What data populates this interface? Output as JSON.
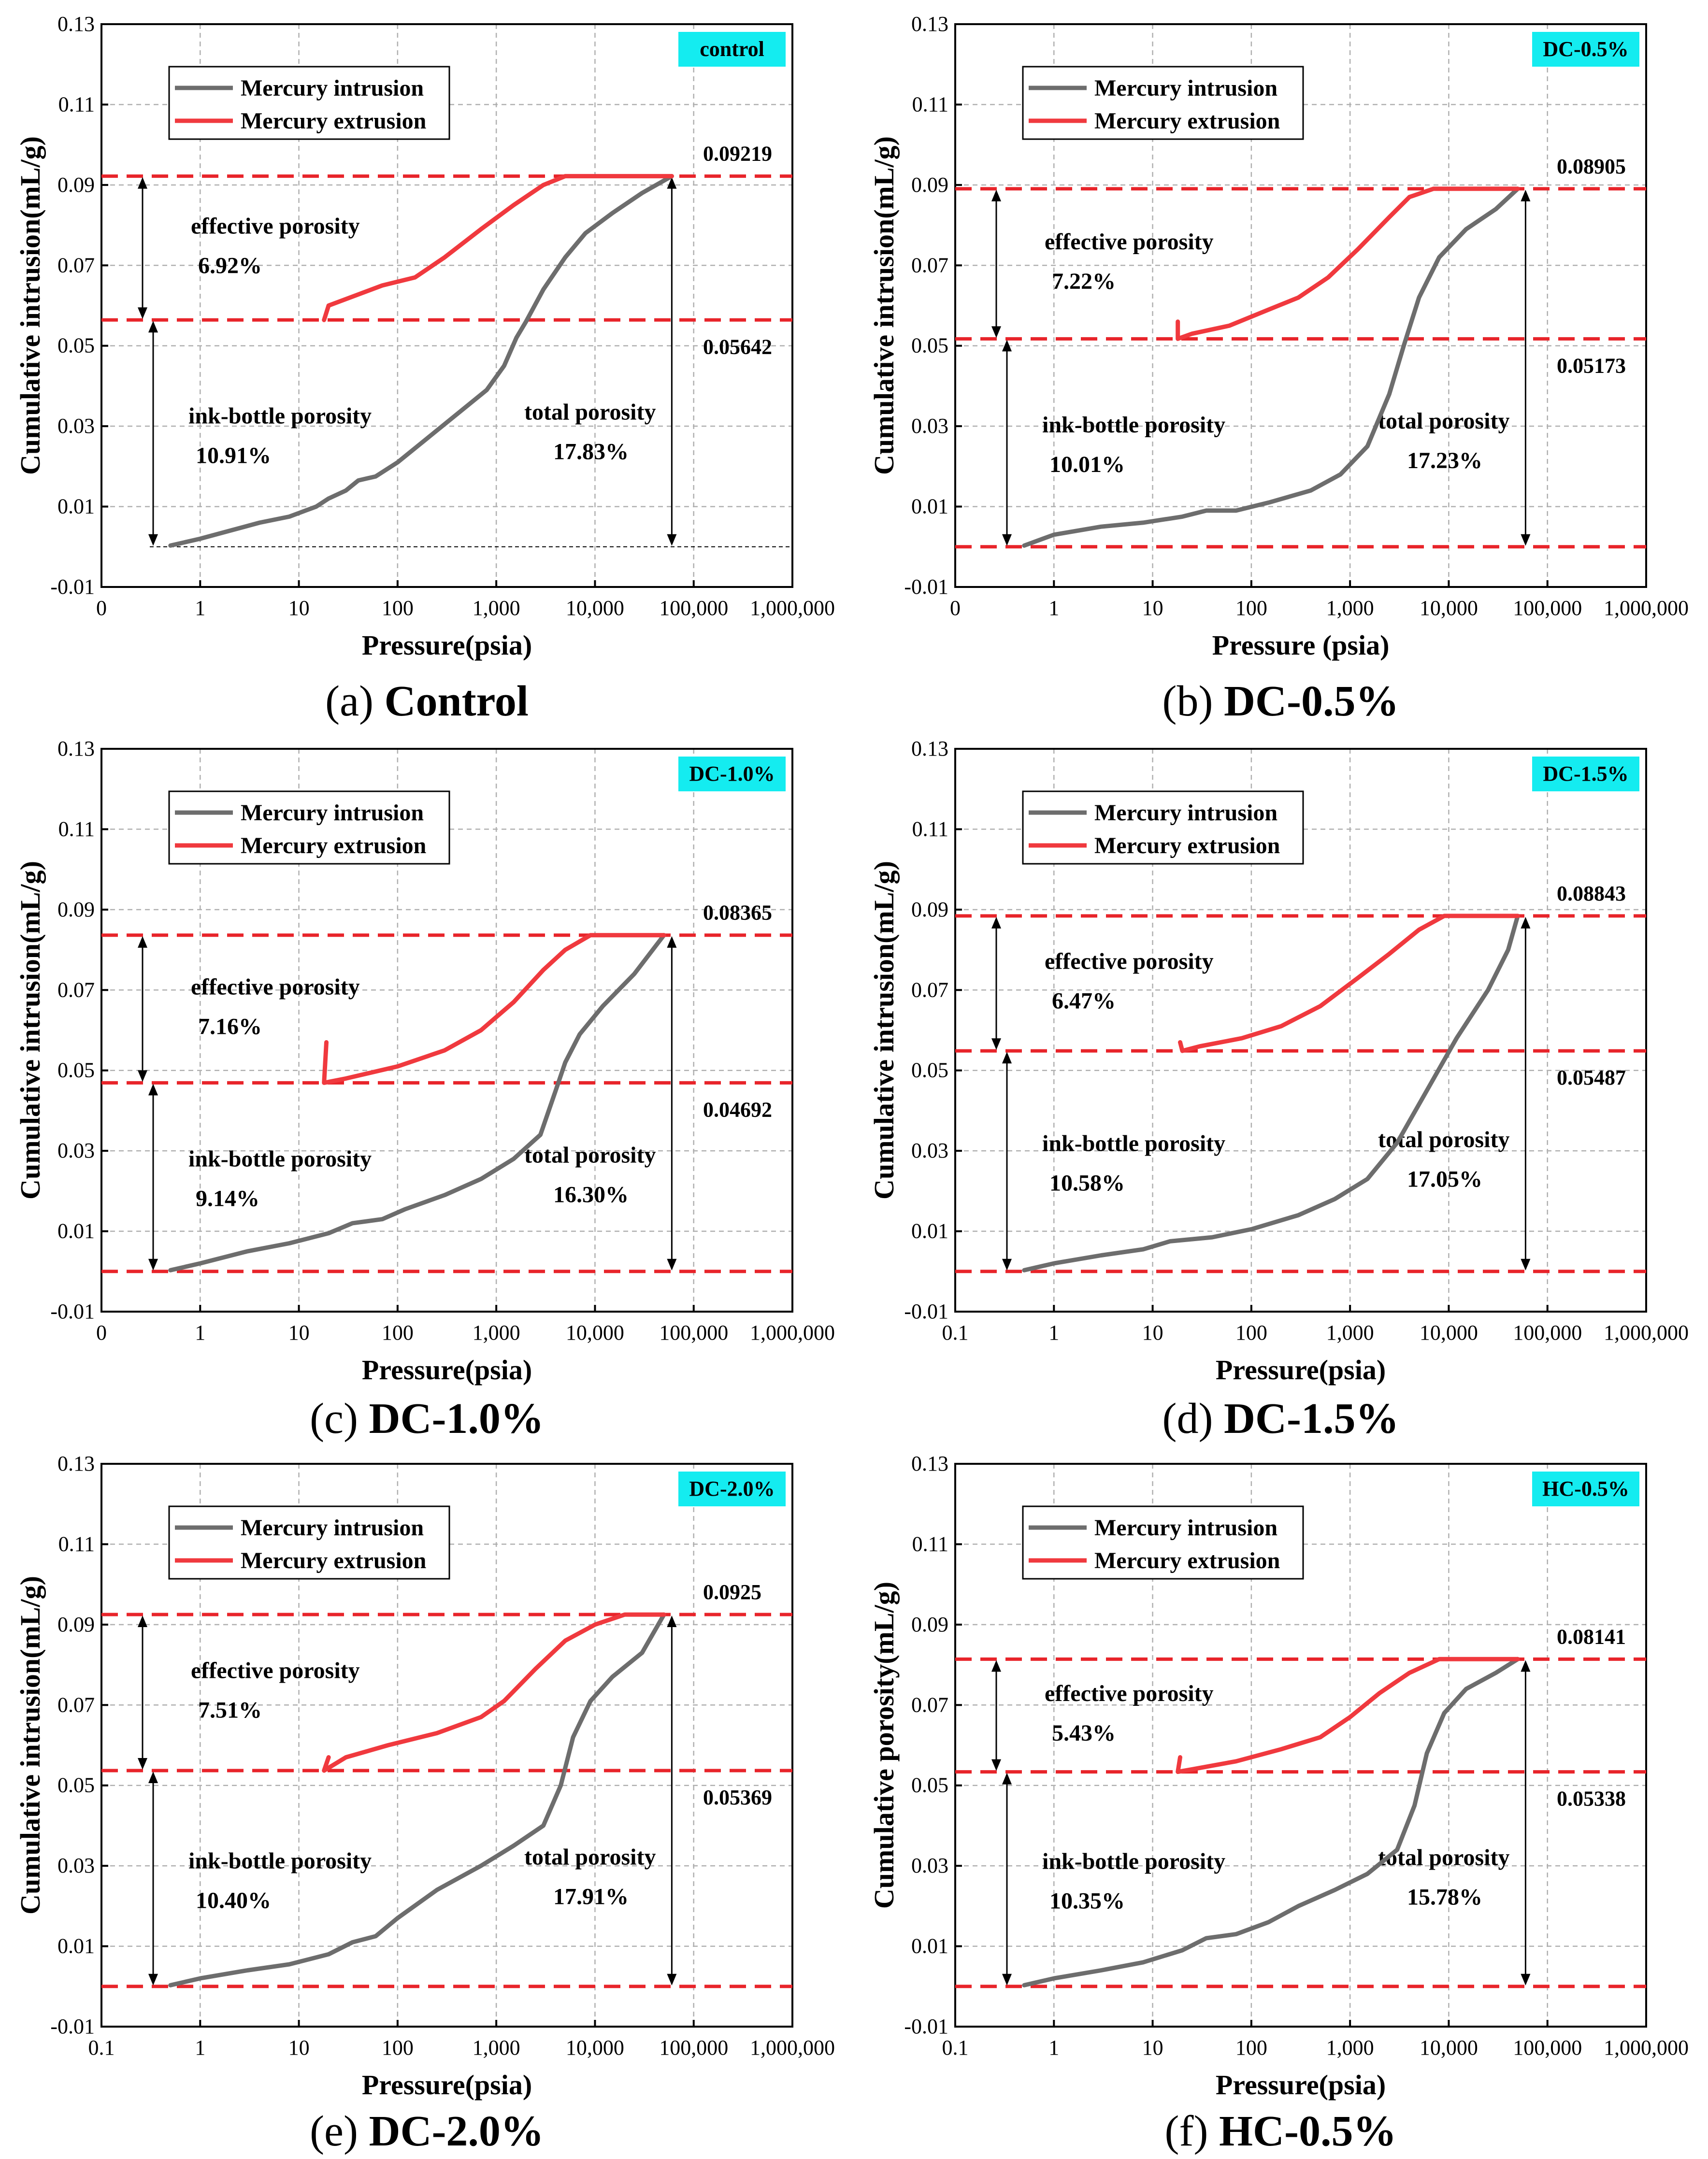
{
  "colors": {
    "intrusion": "#6d6d6d",
    "extrusion": "#f0393e",
    "dashed": "#e8242a",
    "badge": "#14ecf0",
    "grid": "#b0b0b0"
  },
  "chart_data": [
    {
      "id": "a",
      "type": "line",
      "caption_letter": "(a)",
      "caption_name": "Control",
      "badge": "control",
      "ylabel": "Cumulative intrusion(mL/g)",
      "xlabel": "Pressure(psia)",
      "yticks": [
        "-0.01",
        "0.01",
        "0.03",
        "0.05",
        "0.07",
        "0.09",
        "0.11",
        "0.13"
      ],
      "ylim": [
        -0.01,
        0.13
      ],
      "xticks": [
        "0",
        "1",
        "10",
        "100",
        "1,000",
        "10,000",
        "100,000",
        "1,000,000"
      ],
      "xlim_log10": [
        -1,
        6
      ],
      "legend": [
        "Mercury intrusion",
        "Mercury extrusion"
      ],
      "upper_value": "0.09219",
      "lower_value": "0.05642",
      "upper": 0.09219,
      "lower": 0.05642,
      "base": 0.0,
      "base_style": "thin",
      "effective_label": "effective porosity",
      "effective_value": "6.92%",
      "ink_label": "ink-bottle porosity",
      "ink_value": "10.91%",
      "total_label": "total porosity",
      "total_value": "17.83%",
      "intrusion": [
        [
          0.5,
          0.0003
        ],
        [
          1,
          0.002
        ],
        [
          2,
          0.004
        ],
        [
          4,
          0.006
        ],
        [
          8,
          0.0075
        ],
        [
          15,
          0.01
        ],
        [
          20,
          0.012
        ],
        [
          30,
          0.014
        ],
        [
          40,
          0.0165
        ],
        [
          60,
          0.0175
        ],
        [
          100,
          0.021
        ],
        [
          200,
          0.027
        ],
        [
          400,
          0.033
        ],
        [
          800,
          0.039
        ],
        [
          1200,
          0.045
        ],
        [
          1600,
          0.052
        ],
        [
          2000,
          0.056
        ],
        [
          3000,
          0.064
        ],
        [
          5000,
          0.072
        ],
        [
          8000,
          0.078
        ],
        [
          15000,
          0.083
        ],
        [
          30000,
          0.088
        ],
        [
          60000,
          0.09219
        ]
      ],
      "extrusion": [
        [
          60000,
          0.09219
        ],
        [
          5000,
          0.09219
        ],
        [
          3000,
          0.09
        ],
        [
          1500,
          0.085
        ],
        [
          700,
          0.079
        ],
        [
          300,
          0.072
        ],
        [
          150,
          0.067
        ],
        [
          70,
          0.065
        ],
        [
          20,
          0.06
        ],
        [
          18,
          0.05642
        ]
      ]
    },
    {
      "id": "b",
      "type": "line",
      "caption_letter": "(b)",
      "caption_name": "DC-0.5%",
      "badge": "DC-0.5%",
      "ylabel": "Cumulative intrusion(mL/g)",
      "xlabel": "Pressure (psia)",
      "yticks": [
        "-0.01",
        "0.01",
        "0.03",
        "0.05",
        "0.07",
        "0.09",
        "0.11",
        "0.13"
      ],
      "ylim": [
        -0.01,
        0.13
      ],
      "xticks": [
        "0",
        "1",
        "10",
        "100",
        "1,000",
        "10,000",
        "100,000",
        "1,000,000"
      ],
      "xlim_log10": [
        -1,
        6
      ],
      "legend": [
        "Mercury intrusion",
        "Mercury extrusion"
      ],
      "upper_value": "0.08905",
      "lower_value": "0.05173",
      "upper": 0.08905,
      "lower": 0.05173,
      "base": 0.0,
      "base_style": "dashed",
      "effective_label": "effective porosity",
      "effective_value": "7.22%",
      "ink_label": "ink-bottle porosity",
      "ink_value": "10.01%",
      "total_label": "total porosity",
      "total_value": "17.23%",
      "intrusion": [
        [
          0.5,
          0.0003
        ],
        [
          1,
          0.003
        ],
        [
          3,
          0.005
        ],
        [
          8,
          0.006
        ],
        [
          20,
          0.0075
        ],
        [
          35,
          0.009
        ],
        [
          70,
          0.009
        ],
        [
          150,
          0.011
        ],
        [
          400,
          0.014
        ],
        [
          800,
          0.018
        ],
        [
          1500,
          0.025
        ],
        [
          2500,
          0.038
        ],
        [
          3500,
          0.05
        ],
        [
          5000,
          0.062
        ],
        [
          8000,
          0.072
        ],
        [
          15000,
          0.079
        ],
        [
          30000,
          0.084
        ],
        [
          50000,
          0.08905
        ]
      ],
      "extrusion": [
        [
          50000,
          0.08905
        ],
        [
          7000,
          0.08905
        ],
        [
          4000,
          0.087
        ],
        [
          2500,
          0.082
        ],
        [
          1200,
          0.074
        ],
        [
          600,
          0.067
        ],
        [
          300,
          0.062
        ],
        [
          150,
          0.059
        ],
        [
          60,
          0.055
        ],
        [
          25,
          0.053
        ],
        [
          18,
          0.05173
        ],
        [
          18,
          0.056
        ]
      ]
    },
    {
      "id": "c",
      "type": "line",
      "caption_letter": "(c)",
      "caption_name": "DC-1.0%",
      "badge": "DC-1.0%",
      "ylabel": "Cumulative intrusion(mL/g)",
      "xlabel": "Pressure(psia)",
      "yticks": [
        "-0.01",
        "0.01",
        "0.03",
        "0.05",
        "0.07",
        "0.09",
        "0.11",
        "0.13"
      ],
      "ylim": [
        -0.01,
        0.13
      ],
      "xticks": [
        "0",
        "1",
        "10",
        "100",
        "1,000",
        "10,000",
        "100,000",
        "1,000,000"
      ],
      "xlim_log10": [
        -1,
        6
      ],
      "legend": [
        "Mercury intrusion",
        "Mercury extrusion"
      ],
      "upper_value": "0.08365",
      "lower_value": "0.04692",
      "upper": 0.08365,
      "lower": 0.04692,
      "base": 0.0,
      "base_style": "dashed",
      "effective_label": "effective porosity",
      "effective_value": "7.16%",
      "ink_label": "ink-bottle porosity",
      "ink_value": "9.14%",
      "total_label": "total porosity",
      "total_value": "16.30%",
      "intrusion": [
        [
          0.5,
          0.0003
        ],
        [
          1,
          0.002
        ],
        [
          3,
          0.005
        ],
        [
          8,
          0.007
        ],
        [
          20,
          0.0095
        ],
        [
          35,
          0.012
        ],
        [
          70,
          0.013
        ],
        [
          120,
          0.0155
        ],
        [
          300,
          0.019
        ],
        [
          700,
          0.023
        ],
        [
          1500,
          0.028
        ],
        [
          2800,
          0.034
        ],
        [
          4000,
          0.045
        ],
        [
          5000,
          0.052
        ],
        [
          7000,
          0.059
        ],
        [
          12000,
          0.066
        ],
        [
          25000,
          0.074
        ],
        [
          50000,
          0.08365
        ]
      ],
      "extrusion": [
        [
          50000,
          0.08365
        ],
        [
          9000,
          0.08365
        ],
        [
          5000,
          0.08
        ],
        [
          3000,
          0.075
        ],
        [
          1500,
          0.067
        ],
        [
          700,
          0.06
        ],
        [
          300,
          0.055
        ],
        [
          100,
          0.051
        ],
        [
          30,
          0.048
        ],
        [
          18,
          0.04692
        ],
        [
          19,
          0.057
        ]
      ]
    },
    {
      "id": "d",
      "type": "line",
      "caption_letter": "(d)",
      "caption_name": "DC-1.5%",
      "badge": "DC-1.5%",
      "ylabel": "Cumulative intrusion(mL/g)",
      "xlabel": "Pressure(psia)",
      "yticks": [
        "-0.01",
        "0.01",
        "0.03",
        "0.05",
        "0.07",
        "0.09",
        "0.11",
        "0.13"
      ],
      "ylim": [
        -0.01,
        0.13
      ],
      "xticks": [
        "0.1",
        "1",
        "10",
        "100",
        "1,000",
        "10,000",
        "100,000",
        "1,000,000"
      ],
      "xlim_log10": [
        -1,
        6
      ],
      "legend": [
        "Mercury intrusion",
        "Mercury extrusion"
      ],
      "upper_value": "0.08843",
      "lower_value": "0.05487",
      "upper": 0.08843,
      "lower": 0.05487,
      "base": 0.0,
      "base_style": "dashed",
      "effective_label": "effective porosity",
      "effective_value": "6.47%",
      "ink_label": "ink-bottle porosity",
      "ink_value": "10.58%",
      "total_label": "total porosity",
      "total_value": "17.05%",
      "intrusion": [
        [
          0.5,
          0.0003
        ],
        [
          1,
          0.002
        ],
        [
          3,
          0.004
        ],
        [
          8,
          0.0055
        ],
        [
          15,
          0.0075
        ],
        [
          40,
          0.0085
        ],
        [
          100,
          0.0105
        ],
        [
          300,
          0.014
        ],
        [
          700,
          0.018
        ],
        [
          1500,
          0.023
        ],
        [
          3000,
          0.032
        ],
        [
          6000,
          0.045
        ],
        [
          12000,
          0.058
        ],
        [
          25000,
          0.07
        ],
        [
          40000,
          0.08
        ],
        [
          50000,
          0.08843
        ]
      ],
      "extrusion": [
        [
          50000,
          0.08843
        ],
        [
          9000,
          0.08843
        ],
        [
          5000,
          0.085
        ],
        [
          2500,
          0.079
        ],
        [
          1200,
          0.073
        ],
        [
          500,
          0.066
        ],
        [
          200,
          0.061
        ],
        [
          80,
          0.058
        ],
        [
          30,
          0.056
        ],
        [
          20,
          0.05487
        ],
        [
          19,
          0.057
        ]
      ]
    },
    {
      "id": "e",
      "type": "line",
      "caption_letter": "(e)",
      "caption_name": "DC-2.0%",
      "badge": "DC-2.0%",
      "ylabel": "Cumulative intrusion(mL/g)",
      "xlabel": "Pressure(psia)",
      "yticks": [
        "-0.01",
        "0.01",
        "0.03",
        "0.05",
        "0.07",
        "0.09",
        "0.11",
        "0.13"
      ],
      "ylim": [
        -0.01,
        0.13
      ],
      "xticks": [
        "0.1",
        "1",
        "10",
        "100",
        "1,000",
        "10,000",
        "100,000",
        "1,000,000"
      ],
      "xlim_log10": [
        -1,
        6
      ],
      "legend": [
        "Mercury intrusion",
        "Mercury extrusion"
      ],
      "upper_value": "0.0925",
      "lower_value": "0.05369",
      "upper": 0.0925,
      "lower": 0.05369,
      "base": 0.0,
      "base_style": "dashed",
      "effective_label": "effective porosity",
      "effective_value": "7.51%",
      "ink_label": "ink-bottle porosity",
      "ink_value": "10.40%",
      "total_label": "total porosity",
      "total_value": "17.91%",
      "intrusion": [
        [
          0.5,
          0.0003
        ],
        [
          1,
          0.002
        ],
        [
          3,
          0.004
        ],
        [
          8,
          0.0055
        ],
        [
          20,
          0.008
        ],
        [
          35,
          0.011
        ],
        [
          60,
          0.0125
        ],
        [
          100,
          0.017
        ],
        [
          250,
          0.024
        ],
        [
          700,
          0.03
        ],
        [
          1500,
          0.035
        ],
        [
          3000,
          0.04
        ],
        [
          4500,
          0.05
        ],
        [
          6000,
          0.062
        ],
        [
          9000,
          0.071
        ],
        [
          15000,
          0.077
        ],
        [
          30000,
          0.083
        ],
        [
          50000,
          0.0925
        ]
      ],
      "extrusion": [
        [
          50000,
          0.0925
        ],
        [
          20000,
          0.0925
        ],
        [
          10000,
          0.09
        ],
        [
          5000,
          0.086
        ],
        [
          2500,
          0.079
        ],
        [
          1200,
          0.071
        ],
        [
          700,
          0.067
        ],
        [
          250,
          0.063
        ],
        [
          80,
          0.06
        ],
        [
          30,
          0.057
        ],
        [
          18,
          0.05369
        ],
        [
          20,
          0.057
        ]
      ]
    },
    {
      "id": "f",
      "type": "line",
      "caption_letter": "(f)",
      "caption_name": "HC-0.5%",
      "badge": "HC-0.5%",
      "ylabel": "Cumulative porosity(mL/g)",
      "xlabel": "Pressure(psia)",
      "yticks": [
        "-0.01",
        "0.01",
        "0.03",
        "0.05",
        "0.07",
        "0.09",
        "0.11",
        "0.13"
      ],
      "ylim": [
        -0.01,
        0.13
      ],
      "xticks": [
        "0.1",
        "1",
        "10",
        "100",
        "1,000",
        "10,000",
        "100,000",
        "1,000,000"
      ],
      "xlim_log10": [
        -1,
        6
      ],
      "legend": [
        "Mercury intrusion",
        "Mercury extrusion"
      ],
      "upper_value": "0.08141",
      "lower_value": "0.05338",
      "upper": 0.08141,
      "lower": 0.05338,
      "base": 0.0,
      "base_style": "dashed",
      "effective_label": "effective porosity",
      "effective_value": "5.43%",
      "ink_label": "ink-bottle porosity",
      "ink_value": "10.35%",
      "total_label": "total porosity",
      "total_value": "15.78%",
      "intrusion": [
        [
          0.5,
          0.0003
        ],
        [
          1,
          0.002
        ],
        [
          3,
          0.004
        ],
        [
          8,
          0.006
        ],
        [
          20,
          0.009
        ],
        [
          35,
          0.012
        ],
        [
          70,
          0.013
        ],
        [
          150,
          0.016
        ],
        [
          300,
          0.02
        ],
        [
          700,
          0.024
        ],
        [
          1500,
          0.028
        ],
        [
          3000,
          0.034
        ],
        [
          4500,
          0.045
        ],
        [
          6000,
          0.058
        ],
        [
          9000,
          0.068
        ],
        [
          15000,
          0.074
        ],
        [
          30000,
          0.078
        ],
        [
          50000,
          0.08141
        ]
      ],
      "extrusion": [
        [
          50000,
          0.08141
        ],
        [
          8000,
          0.08141
        ],
        [
          4000,
          0.078
        ],
        [
          2000,
          0.073
        ],
        [
          1000,
          0.067
        ],
        [
          500,
          0.062
        ],
        [
          200,
          0.059
        ],
        [
          70,
          0.056
        ],
        [
          25,
          0.054
        ],
        [
          18,
          0.05338
        ],
        [
          19,
          0.057
        ]
      ]
    }
  ]
}
